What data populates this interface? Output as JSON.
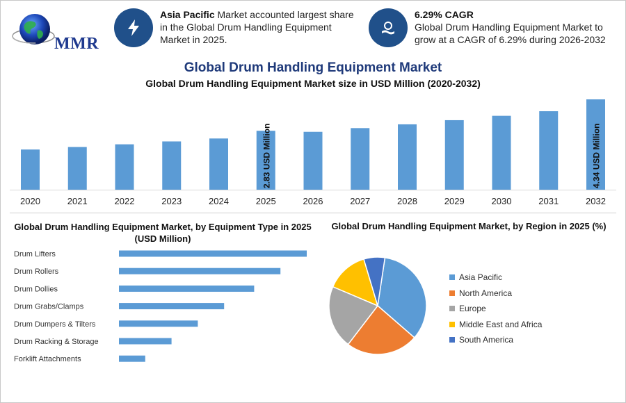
{
  "brand": {
    "logo_text": "MMR"
  },
  "kpis": [
    {
      "icon": "lightning-icon",
      "bold": "Asia Pacific",
      "text": "Market accounted largest share in the Global Drum Handling Equipment Market in 2025."
    },
    {
      "icon": "hand-coin-icon",
      "bold": "6.29% CAGR",
      "text": "Global Drum Handling Equipment Market to grow at a CAGR of 6.29% during 2026-2032"
    }
  ],
  "header": {
    "title": "Global Drum Handling Equipment Market",
    "subtitle": "Global Drum Handling Equipment Market size in USD Million (2020-2032)"
  },
  "colors": {
    "bar": "#5b9bd5",
    "pie": [
      "#5b9bd5",
      "#ed7d31",
      "#a5a5a5",
      "#ffc000",
      "#4472c4"
    ]
  },
  "chart_data": [
    {
      "type": "bar",
      "title": "Global Drum Handling Equipment Market size in USD Million (2020-2032)",
      "categories": [
        "2020",
        "2021",
        "2022",
        "2023",
        "2024",
        "2025",
        "2026",
        "2027",
        "2028",
        "2029",
        "2030",
        "2031",
        "2032"
      ],
      "values": [
        1.93,
        2.05,
        2.18,
        2.32,
        2.46,
        2.83,
        2.78,
        2.96,
        3.14,
        3.34,
        3.55,
        3.77,
        4.34
      ],
      "data_labels": [
        {
          "category": "2025",
          "text": "2.83 USD Million"
        },
        {
          "category": "2032",
          "text": "4.34 USD Million"
        }
      ],
      "xlabel": "",
      "ylabel": "",
      "ylim": [
        0,
        4.34
      ]
    },
    {
      "type": "bar",
      "orientation": "horizontal",
      "title": "Global Drum Handling Equipment Market, by Equipment Type in 2025 (USD Million)",
      "categories": [
        "Drum Lifters",
        "Drum Rollers",
        "Drum Dollies",
        "Drum Grabs/Clamps",
        "Drum Dumpers & Tilters",
        "Drum Racking & Storage",
        "Forklift Attachments"
      ],
      "values": [
        100,
        86,
        72,
        56,
        42,
        28,
        14
      ],
      "xlim": [
        0,
        100
      ]
    },
    {
      "type": "pie",
      "title": "Global Drum Handling Equipment Market, by Region in 2025 (%)",
      "labels": [
        "Asia Pacific",
        "North America",
        "Europe",
        "Middle East and Africa",
        "South America"
      ],
      "values": [
        34,
        24,
        21,
        14,
        7
      ],
      "legend": "right"
    }
  ]
}
